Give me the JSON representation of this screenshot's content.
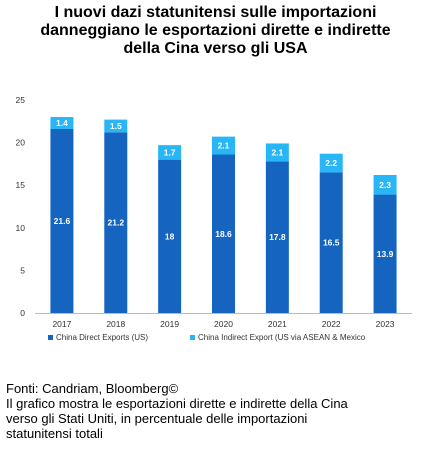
{
  "title_lines": [
    "I nuovi dazi statunitensi sulle importazioni",
    "danneggiano le esportazioni dirette e indirette",
    "della Cina verso gli USA"
  ],
  "notes": {
    "source": "Fonti: Candriam, Bloomberg©",
    "caption_lines": [
      "Il grafico mostra le esportazioni dirette e indirette della Cina",
      "verso gli Stati Uniti, in percentuale delle importazioni",
      "statunitensi totali"
    ]
  },
  "colors": {
    "direct": "#1565c0",
    "indirect": "#29b6f6"
  },
  "chart_data": {
    "type": "bar",
    "stacked": true,
    "categories": [
      "2017",
      "2018",
      "2019",
      "2020",
      "2021",
      "2022",
      "2023"
    ],
    "series": [
      {
        "name": "China Direct Exports (US)",
        "values": [
          21.6,
          21.2,
          18,
          18.6,
          17.8,
          16.5,
          13.9
        ]
      },
      {
        "name": "China Indirect Export (US via ASEAN & Mexico",
        "values": [
          1.4,
          1.5,
          1.7,
          2.1,
          2.1,
          2.2,
          2.3
        ]
      }
    ],
    "title": "",
    "xlabel": "",
    "ylabel": "",
    "ylim": [
      0,
      25
    ],
    "yticks": [
      0,
      5,
      10,
      15,
      20,
      25
    ],
    "grid": false,
    "legend": "bottom"
  }
}
